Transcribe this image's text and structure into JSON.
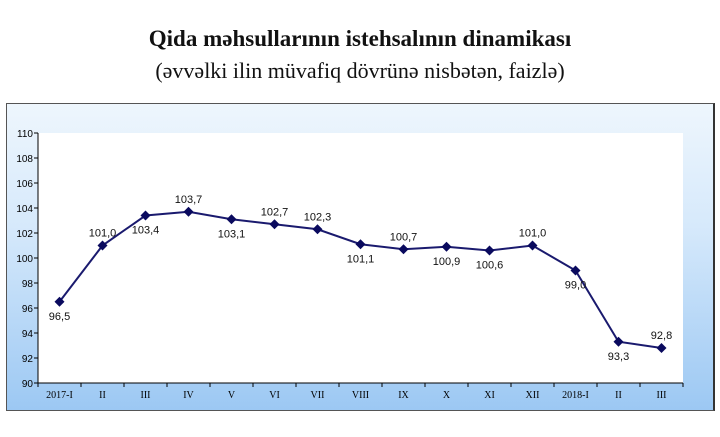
{
  "title": "Qida məhsullarının istehsalının dinamikası",
  "subtitle": "(əvvəlki ilin müvafiq dövrünə nisbətən, faizlə)",
  "chart_data": {
    "type": "line",
    "title": "",
    "xlabel": "",
    "ylabel": "",
    "categories": [
      "2017-I",
      "II",
      "III",
      "IV",
      "V",
      "VI",
      "VII",
      "VIII",
      "IX",
      "X",
      "XI",
      "XII",
      "2018-I",
      "II",
      "III"
    ],
    "series": [
      {
        "values": [
          96.5,
          101.0,
          103.4,
          103.7,
          103.1,
          102.7,
          102.3,
          101.1,
          100.7,
          100.9,
          100.6,
          101.0,
          99.0,
          93.3,
          92.8
        ]
      }
    ],
    "data_labels": [
      "96,5",
      "101,0",
      "103,4",
      "103,7",
      "103,1",
      "102,7",
      "102,3",
      "101,1",
      "100,7",
      "100,9",
      "100,6",
      "101,0",
      "99,0",
      "93,3",
      "92,8"
    ],
    "label_position": [
      "below",
      "above",
      "below",
      "above",
      "below",
      "above",
      "above",
      "below",
      "above",
      "below",
      "below",
      "above",
      "below",
      "below",
      "above"
    ],
    "ylim": [
      90,
      110
    ],
    "yticks": [
      90,
      92,
      94,
      96,
      98,
      100,
      102,
      104,
      106,
      108,
      110
    ],
    "grid": false,
    "line_color": "#1a1a6e",
    "marker": "diamond"
  }
}
